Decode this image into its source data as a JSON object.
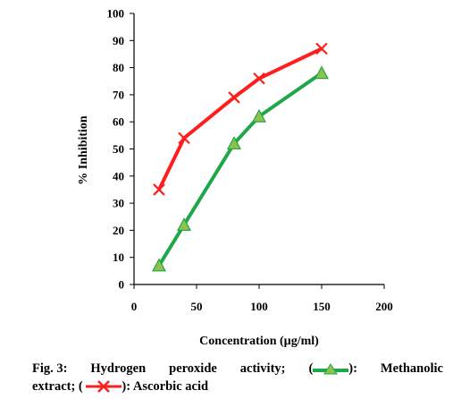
{
  "chart_data": {
    "type": "line",
    "title": "",
    "xlabel": "Concentration (µg/ml)",
    "ylabel": "% Inhibition",
    "xlim": [
      0,
      200
    ],
    "ylim": [
      0,
      100
    ],
    "xticks": [
      0,
      50,
      100,
      150,
      200
    ],
    "yticks": [
      0,
      10,
      20,
      30,
      40,
      50,
      60,
      70,
      80,
      90,
      100
    ],
    "grid": false,
    "legend": "caption",
    "series": [
      {
        "name": "Methanolic extract",
        "marker": "triangle",
        "line_color": "#1fa84a",
        "marker_color": "#8fc24a",
        "x": [
          20,
          40,
          80,
          100,
          150
        ],
        "y": [
          7,
          22,
          52,
          62,
          78
        ]
      },
      {
        "name": "Ascorbic acid",
        "marker": "cross",
        "line_color": "#ff1e1e",
        "marker_color": "#ff1e1e",
        "x": [
          20,
          40,
          80,
          100,
          150
        ],
        "y": [
          35,
          54,
          69,
          76,
          87
        ]
      }
    ]
  },
  "caption": {
    "fig_label": "Fig. 3:",
    "w1": "Hydrogen",
    "w2": "peroxide",
    "w3": "activity;",
    "open1": "(",
    "close1": "):",
    "w4": "Methanolic",
    "w5": "extract;",
    "open2": "(",
    "close2": "): Ascorbic acid"
  }
}
